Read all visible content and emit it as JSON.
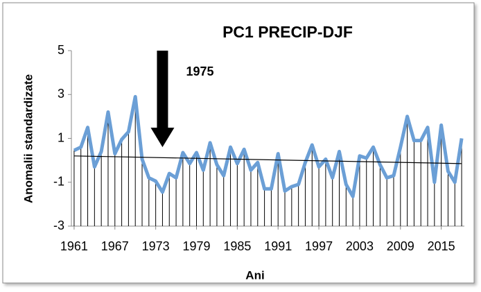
{
  "chart_data": {
    "type": "line",
    "title": "PC1 PRECIP-DJF",
    "x_label": "Ani",
    "y_label": "Anomalii standardizate",
    "x": [
      1961,
      1962,
      1963,
      1964,
      1965,
      1966,
      1967,
      1968,
      1969,
      1970,
      1971,
      1972,
      1973,
      1974,
      1975,
      1976,
      1977,
      1978,
      1979,
      1980,
      1981,
      1982,
      1983,
      1984,
      1985,
      1986,
      1987,
      1988,
      1989,
      1990,
      1991,
      1992,
      1993,
      1994,
      1995,
      1996,
      1997,
      1998,
      1999,
      2000,
      2001,
      2002,
      2003,
      2004,
      2005,
      2006,
      2007,
      2008,
      2009,
      2010,
      2011,
      2012,
      2013,
      2014,
      2015,
      2016,
      2017,
      2018
    ],
    "series": [
      {
        "color": "#6b9fd6",
        "values": [
          0.45,
          0.6,
          1.5,
          -0.3,
          0.4,
          2.2,
          0.3,
          0.95,
          1.3,
          2.9,
          0.05,
          -0.8,
          -0.95,
          -1.45,
          -0.6,
          -0.8,
          0.35,
          -0.15,
          0.35,
          -0.45,
          0.8,
          -0.2,
          -0.7,
          0.6,
          -0.15,
          0.5,
          -0.45,
          -0.1,
          -1.3,
          -1.3,
          0.3,
          -1.4,
          -1.2,
          -1.1,
          -0.1,
          0.7,
          -0.3,
          0.05,
          -0.8,
          0.4,
          -1.1,
          -1.65,
          0.2,
          0.1,
          0.6,
          -0.2,
          -0.8,
          -0.7,
          0.6,
          2.0,
          0.9,
          0.9,
          1.5,
          -1.0,
          1.6,
          -0.5,
          -1.0,
          1.0
        ]
      }
    ],
    "drop_lines": true,
    "trend": {
      "color": "#000000",
      "x": [
        1961,
        2018
      ],
      "values": [
        0.2,
        -0.15
      ]
    },
    "annotation": {
      "text": "1975",
      "x": 1974,
      "from": 5,
      "to": 0.6
    },
    "xlim": [
      1960.6,
      2018.4
    ],
    "xticks": [
      1961,
      1967,
      1973,
      1979,
      1985,
      1991,
      1997,
      2003,
      2009,
      2015
    ],
    "ylim": [
      -3,
      5
    ],
    "yticks": [
      -3,
      -1,
      1,
      3,
      5
    ]
  }
}
